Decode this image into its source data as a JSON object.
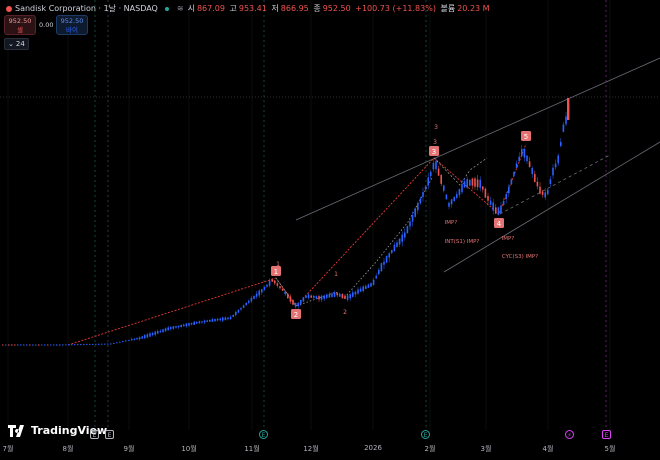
{
  "legend": {
    "title": "Sandisk Corporation · 1날 · NASDAQ",
    "open_label": "시",
    "open": "867.09",
    "high_label": "고",
    "high": "953.41",
    "low_label": "저",
    "low": "866.95",
    "close_label": "종",
    "close": "952.50",
    "change": "+100.73 (+11.83%)",
    "volume_label": "볼륨",
    "volume": "20.23 M"
  },
  "trade": {
    "sell_price": "952.50",
    "sell_label": "셀",
    "spread": "0.00",
    "buy_price": "952.50",
    "buy_label": "바이"
  },
  "collapse_label": "24",
  "logo": "TradingView",
  "x_axis": [
    "7월",
    "8월",
    "9월",
    "10월",
    "11월",
    "12월",
    "2026",
    "2월",
    "3월",
    "4월",
    "5월"
  ],
  "events": [
    "E",
    "E",
    "E",
    "E",
    "E",
    "E"
  ],
  "wave_labels": {
    "n1": "1",
    "n2": "2",
    "n3": "3",
    "n4": "4",
    "n5": "5",
    "s1": "1",
    "s2": "2",
    "s3": "3",
    "tag_3": "3",
    "imp1": "IMP?",
    "int": "INT(S1) IMP?",
    "imp2": "IMP?",
    "cyc": "CYC(S3) IMP?"
  },
  "colors": {
    "up": "#2962ff",
    "down": "#ef5350",
    "wave": "#e53935",
    "channel": "#5d606b",
    "bg": "#000000"
  },
  "chart_data": {
    "type": "candlestick",
    "symbol": "Sandisk Corporation",
    "interval": "1날",
    "exchange": "NASDAQ",
    "x_tick_labels": [
      "7월",
      "8월",
      "9월",
      "10월",
      "11월",
      "12월",
      "2026",
      "2월",
      "3월",
      "4월",
      "5월"
    ],
    "last_bar": {
      "open": 867.09,
      "high": 953.41,
      "low": 866.95,
      "close": 952.5,
      "change": 100.73,
      "change_pct": 11.83,
      "volume": "20.23 M"
    },
    "y_axis_labels_shown": false
  }
}
